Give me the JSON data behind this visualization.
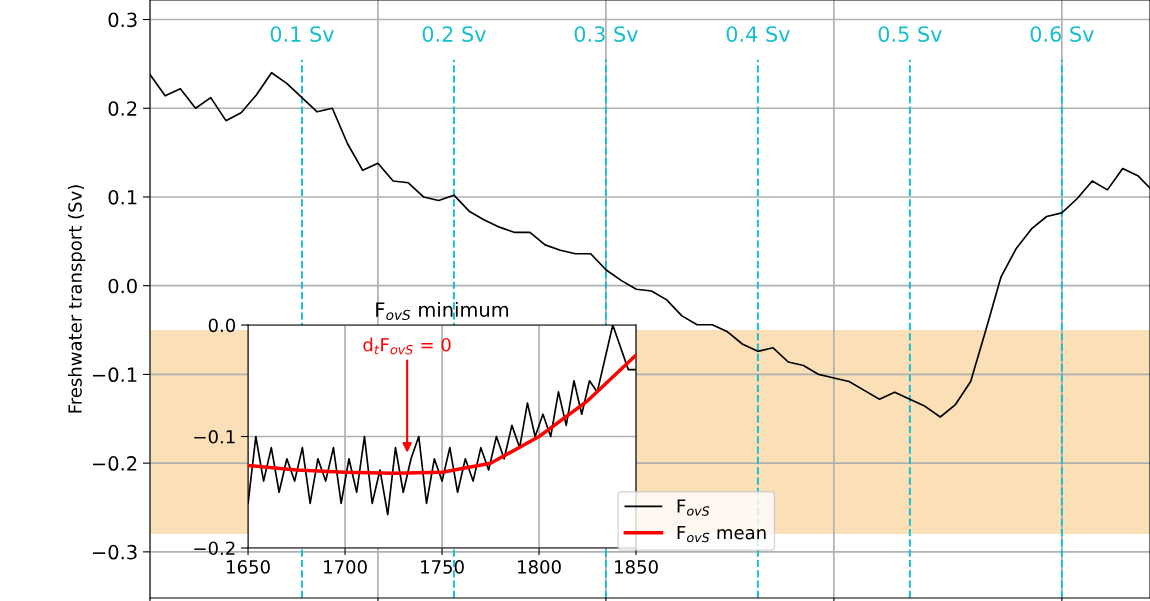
{
  "chart_data": [
    {
      "type": "line",
      "ylabel": "Freshwater transport (Sv)",
      "xlim": [
        0,
        0.658
      ],
      "ylim": [
        -0.352,
        0.322
      ],
      "xticks": [
        {
          "value": 0,
          "label": null
        },
        {
          "value": 0.15,
          "label": null
        },
        {
          "value": 0.3,
          "label": null
        },
        {
          "value": 0.45,
          "label": null
        },
        {
          "value": 0.6,
          "label": null
        }
      ],
      "yticks": [
        {
          "value": -0.3,
          "label": "−0.3"
        },
        {
          "value": -0.2,
          "label": "−0.2"
        },
        {
          "value": -0.1,
          "label": "−0.1"
        },
        {
          "value": 0.0,
          "label": "0.0"
        },
        0.1,
        0.2,
        0.3
      ],
      "tick_labels": "y",
      "grid": true,
      "series": [
        {
          "color": "#000000",
          "x": [
            0,
            0.01,
            0.02,
            0.03,
            0.04,
            0.05,
            0.06,
            0.07,
            0.08,
            0.09,
            0.1,
            0.11,
            0.12,
            0.13,
            0.14,
            0.15,
            0.16,
            0.17,
            0.18,
            0.19,
            0.2,
            0.21,
            0.22,
            0.23,
            0.24,
            0.25,
            0.26,
            0.27,
            0.28,
            0.29,
            0.3,
            0.31,
            0.32,
            0.33,
            0.34,
            0.35,
            0.36,
            0.37,
            0.38,
            0.39,
            0.4,
            0.41,
            0.42,
            0.43,
            0.44,
            0.45,
            0.46,
            0.47,
            0.48,
            0.49,
            0.5,
            0.51,
            0.52,
            0.53,
            0.54,
            0.55,
            0.56,
            0.57,
            0.58,
            0.59,
            0.6,
            0.61,
            0.62,
            0.63,
            0.64,
            0.65,
            0.658
          ],
          "values": [
            0.238,
            0.214,
            0.222,
            0.2,
            0.212,
            0.186,
            0.195,
            0.215,
            0.24,
            0.228,
            0.212,
            0.196,
            0.2,
            0.16,
            0.13,
            0.138,
            0.118,
            0.116,
            0.1,
            0.096,
            0.102,
            0.084,
            0.074,
            0.066,
            0.06,
            0.06,
            0.046,
            0.04,
            0.036,
            0.036,
            0.018,
            0.006,
            -0.004,
            -0.006,
            -0.016,
            -0.034,
            -0.044,
            -0.044,
            -0.052,
            -0.066,
            -0.074,
            -0.07,
            -0.086,
            -0.09,
            -0.1,
            -0.104,
            -0.108,
            -0.118,
            -0.128,
            -0.12,
            -0.128,
            -0.136,
            -0.148,
            -0.134,
            -0.108,
            -0.05,
            0.01,
            0.042,
            0.064,
            0.078,
            0.082,
            0.098,
            0.118,
            0.108,
            0.132,
            0.124,
            0.11
          ]
        }
      ],
      "ref_lines": [
        {
          "axis": "x",
          "value": 0.1,
          "label": "0.1 Sv",
          "color": "#17becf",
          "line_style": "dashed"
        },
        {
          "axis": "x",
          "value": 0.2,
          "label": "0.2 Sv",
          "color": "#17becf",
          "line_style": "dashed"
        },
        {
          "axis": "x",
          "value": 0.3,
          "label": "0.3 Sv",
          "color": "#17becf",
          "line_style": "dashed"
        },
        {
          "axis": "x",
          "value": 0.4,
          "label": "0.4 Sv",
          "color": "#17becf",
          "line_style": "dashed"
        },
        {
          "axis": "x",
          "value": 0.5,
          "label": "0.5 Sv",
          "color": "#17becf",
          "line_style": "dashed"
        },
        {
          "axis": "x",
          "value": 0.6,
          "label": "0.6 Sv",
          "color": "#17becf",
          "line_style": "dashed"
        }
      ],
      "bands": [
        {
          "axis": "y",
          "from": -0.28,
          "to": -0.05,
          "color": "#fbdfb7"
        }
      ]
    },
    {
      "type": "line",
      "title": "F$_{ovS}$ minimum",
      "xlim": [
        1650,
        1850
      ],
      "ylim": [
        -0.2,
        0.0
      ],
      "xticks": [
        1650,
        1700,
        1750,
        1800,
        1850
      ],
      "yticks": [
        {
          "value": -0.2,
          "label": "−0.2"
        },
        {
          "value": -0.1,
          "label": "−0.1"
        },
        {
          "value": 0.0,
          "label": "0.0"
        }
      ],
      "grid": true,
      "legend": "bottom right",
      "annotations": [
        {
          "text": "d$_{t}$F$_{ovS}$ = 0",
          "x": 1732,
          "y": -0.117
        }
      ],
      "series": [
        {
          "name": "F$_{ovS}$",
          "color": "#000000",
          "x": [
            1650,
            1654,
            1658,
            1662,
            1666,
            1670,
            1674,
            1678,
            1682,
            1686,
            1690,
            1694,
            1698,
            1702,
            1706,
            1710,
            1714,
            1718,
            1722,
            1726,
            1730,
            1734,
            1738,
            1742,
            1746,
            1750,
            1754,
            1758,
            1762,
            1766,
            1770,
            1774,
            1778,
            1782,
            1786,
            1790,
            1794,
            1798,
            1802,
            1806,
            1810,
            1814,
            1818,
            1822,
            1826,
            1830,
            1834,
            1838,
            1842,
            1846,
            1850
          ],
          "values": [
            -0.16,
            -0.1,
            -0.14,
            -0.11,
            -0.15,
            -0.12,
            -0.14,
            -0.11,
            -0.16,
            -0.12,
            -0.14,
            -0.11,
            -0.16,
            -0.12,
            -0.15,
            -0.1,
            -0.16,
            -0.13,
            -0.17,
            -0.11,
            -0.15,
            -0.12,
            -0.1,
            -0.16,
            -0.12,
            -0.14,
            -0.11,
            -0.15,
            -0.12,
            -0.14,
            -0.11,
            -0.13,
            -0.1,
            -0.12,
            -0.09,
            -0.11,
            -0.07,
            -0.1,
            -0.08,
            -0.1,
            -0.06,
            -0.09,
            -0.05,
            -0.08,
            -0.05,
            -0.06,
            -0.03,
            0.0,
            -0.02,
            -0.04,
            -0.04
          ]
        },
        {
          "name": "F$_{ovS}$ mean",
          "color": "#ff0000",
          "x": [
            1650,
            1675,
            1700,
            1725,
            1750,
            1775,
            1800,
            1825,
            1850
          ],
          "values": [
            -0.126,
            -0.13,
            -0.132,
            -0.133,
            -0.132,
            -0.124,
            -0.1,
            -0.068,
            -0.027
          ]
        }
      ]
    }
  ]
}
